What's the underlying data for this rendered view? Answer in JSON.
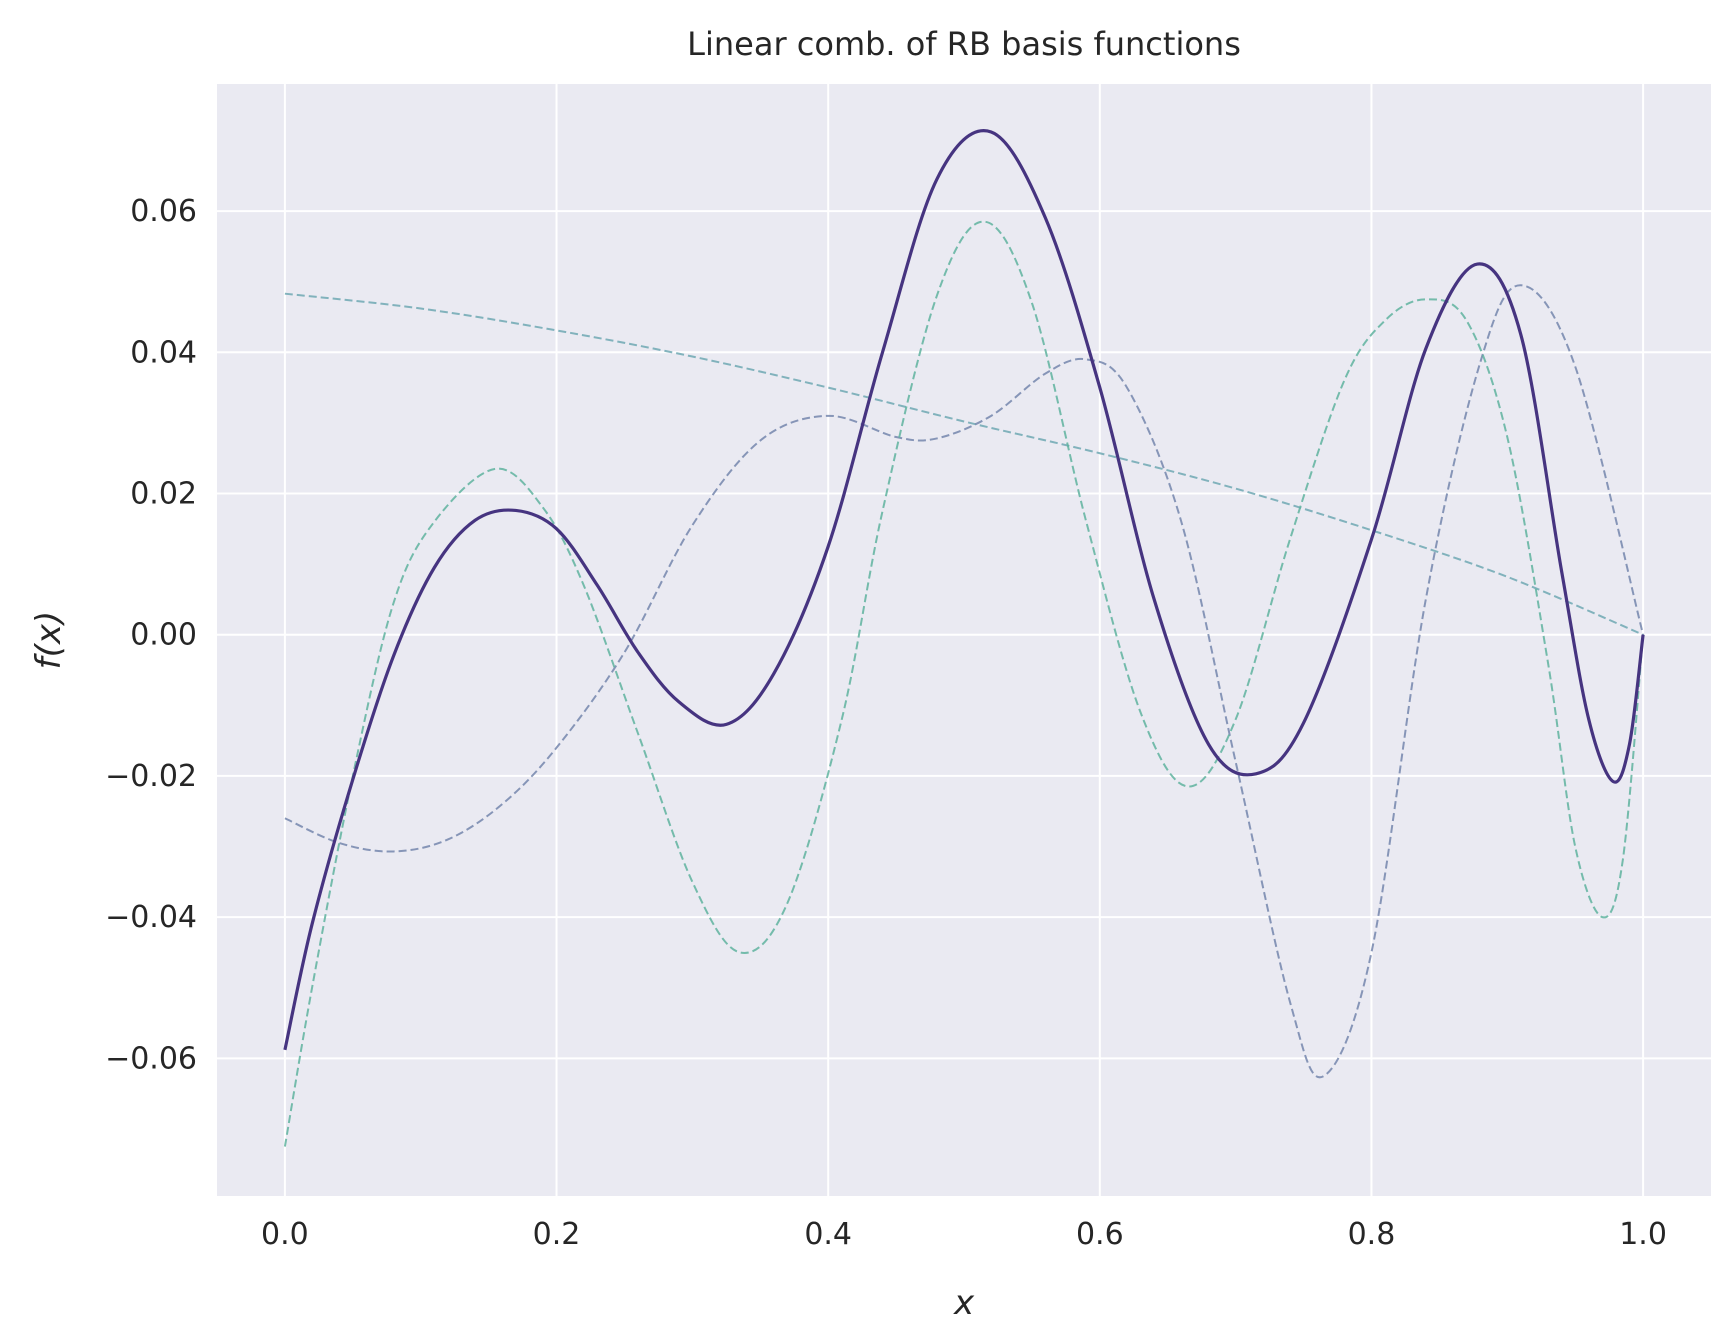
{
  "chart_data": {
    "type": "line",
    "title": "Linear comb. of RB basis functions",
    "xlabel": "x",
    "ylabel": "f(x)",
    "xlim": [
      -0.05,
      1.05
    ],
    "ylim": [
      -0.0795,
      0.078
    ],
    "xticks": [
      0.0,
      0.2,
      0.4,
      0.6,
      0.8,
      1.0
    ],
    "xtick_labels": [
      "0.0",
      "0.2",
      "0.4",
      "0.6",
      "0.8",
      "1.0"
    ],
    "yticks": [
      -0.06,
      -0.04,
      -0.02,
      0.0,
      0.02,
      0.04,
      0.06
    ],
    "ytick_labels": [
      "−0.06",
      "−0.04",
      "−0.02",
      "0.00",
      "0.02",
      "0.04",
      "0.06"
    ],
    "grid": true,
    "background": "#eaeaf2",
    "series": [
      {
        "style": "dashed",
        "color": "#6fa8b3",
        "x": [
          0.0,
          0.1,
          0.2,
          0.3,
          0.4,
          0.5,
          0.6,
          0.7,
          0.8,
          0.9,
          1.0
        ],
        "y": [
          0.0483,
          0.0462,
          0.0431,
          0.0394,
          0.035,
          0.0302,
          0.0257,
          0.0207,
          0.0148,
          0.0082,
          0.0
        ]
      },
      {
        "style": "dashed",
        "color": "#7486ad",
        "x": [
          0.0,
          0.04,
          0.08,
          0.12,
          0.16,
          0.2,
          0.25,
          0.3,
          0.35,
          0.4,
          0.45,
          0.48,
          0.52,
          0.56,
          0.59,
          0.62,
          0.66,
          0.7,
          0.74,
          0.765,
          0.8,
          0.84,
          0.88,
          0.91,
          0.95,
          1.0
        ],
        "y": [
          -0.026,
          -0.0295,
          -0.0307,
          -0.029,
          -0.024,
          -0.016,
          -0.0025,
          0.0155,
          0.0275,
          0.031,
          0.028,
          0.0278,
          0.031,
          0.037,
          0.039,
          0.035,
          0.016,
          -0.018,
          -0.052,
          -0.0625,
          -0.045,
          0.005,
          0.0385,
          0.0495,
          0.038,
          0.0
        ]
      },
      {
        "style": "dashed",
        "color": "#5fb39f",
        "x": [
          0.0,
          0.02,
          0.05,
          0.08,
          0.11,
          0.155,
          0.19,
          0.22,
          0.26,
          0.3,
          0.335,
          0.37,
          0.41,
          0.44,
          0.48,
          0.515,
          0.55,
          0.59,
          0.63,
          0.665,
          0.7,
          0.74,
          0.78,
          0.81,
          0.84,
          0.87,
          0.9,
          0.93,
          0.95,
          0.97,
          0.985,
          1.0
        ],
        "y": [
          -0.0725,
          -0.05,
          -0.02,
          0.0045,
          0.016,
          0.0235,
          0.018,
          0.007,
          -0.014,
          -0.035,
          -0.045,
          -0.038,
          -0.012,
          0.0175,
          0.048,
          0.0585,
          0.047,
          0.016,
          -0.011,
          -0.0215,
          -0.012,
          0.0135,
          0.036,
          0.0445,
          0.0475,
          0.0445,
          0.028,
          -0.004,
          -0.03,
          -0.04,
          -0.032,
          0.0
        ]
      },
      {
        "style": "solid",
        "color": "#463480",
        "x": [
          0.0,
          0.02,
          0.05,
          0.08,
          0.11,
          0.14,
          0.17,
          0.2,
          0.23,
          0.26,
          0.29,
          0.325,
          0.36,
          0.4,
          0.44,
          0.48,
          0.52,
          0.56,
          0.6,
          0.64,
          0.68,
          0.715,
          0.75,
          0.8,
          0.84,
          0.878,
          0.91,
          0.94,
          0.96,
          0.978,
          0.99,
          1.0
        ],
        "y": [
          -0.0588,
          -0.041,
          -0.0205,
          -0.003,
          0.0095,
          0.0162,
          0.0176,
          0.015,
          0.007,
          -0.0025,
          -0.0095,
          -0.0127,
          -0.0055,
          0.0125,
          0.04,
          0.0645,
          0.0712,
          0.059,
          0.035,
          0.005,
          -0.0155,
          -0.0197,
          -0.0125,
          0.0135,
          0.0405,
          0.0525,
          0.0425,
          0.009,
          -0.012,
          -0.0208,
          -0.0155,
          0.0
        ]
      }
    ]
  }
}
